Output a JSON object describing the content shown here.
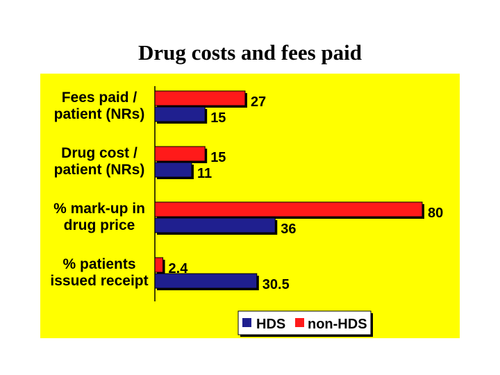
{
  "title": "Drug costs and fees paid",
  "colors": {
    "panel": "#ffff00",
    "hds": "#1f1f8f",
    "non_hds": "#ff1a1a"
  },
  "chart_data": {
    "type": "bar",
    "orientation": "horizontal",
    "categories": [
      [
        "Fees paid /",
        "patient (NRs)"
      ],
      [
        "Drug cost /",
        "patient (NRs)"
      ],
      [
        "% mark-up in",
        "drug price"
      ],
      [
        "% patients",
        "issued receipt"
      ]
    ],
    "series": [
      {
        "name": "HDS",
        "color": "#1f1f8f",
        "values": [
          15,
          11,
          36,
          30.5
        ],
        "labels": [
          "15",
          "11",
          "36",
          "30.5"
        ]
      },
      {
        "name": "non-HDS",
        "color": "#ff1a1a",
        "values": [
          27,
          15,
          80,
          2.4
        ],
        "labels": [
          "27",
          "15",
          "80",
          "2.4"
        ]
      }
    ],
    "xlim": [
      0,
      80
    ],
    "grid": false,
    "legend_position": "bottom-right"
  }
}
